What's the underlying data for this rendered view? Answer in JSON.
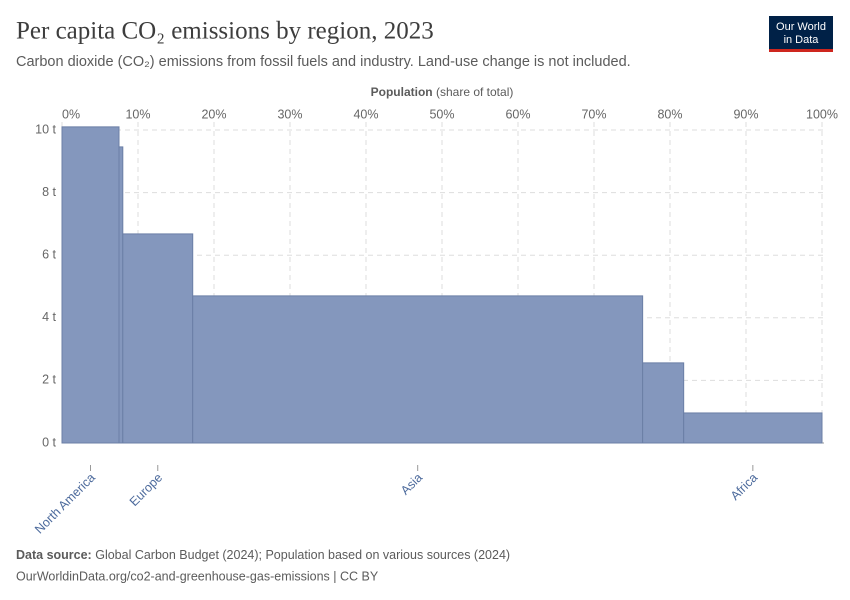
{
  "chart_data": {
    "type": "variable-width-bar",
    "title": "Per capita CO₂ emissions by region, 2023",
    "subtitle": "Carbon dioxide (CO₂) emissions from fossil fuels and industry. Land-use change is not included.",
    "xlabel": "Population",
    "xlabel_note": "(share of total)",
    "logo": [
      "Our World",
      "in Data"
    ],
    "source_label": "Data source:",
    "source": "Global Carbon Budget (2024); Population based on various sources (2024)",
    "url": "OurWorldinData.org/co2-and-greenhouse-gas-emissions | CC BY",
    "categories": [
      "North America",
      null,
      "Europe",
      "Asia",
      null,
      "Africa"
    ],
    "values": [
      10.1,
      9.46,
      6.68,
      4.7,
      2.56,
      0.96
    ],
    "widths": [
      7.5,
      0.5,
      9.2,
      59.2,
      5.4,
      18.2
    ],
    "color": "#8497bd",
    "xlim": [
      0,
      100
    ],
    "xticks": [
      {
        "value": 0,
        "label": "0%"
      },
      {
        "value": 10,
        "label": "10%"
      },
      {
        "value": 20,
        "label": "20%"
      },
      {
        "value": 30,
        "label": "30%"
      },
      {
        "value": 40,
        "label": "40%"
      },
      {
        "value": 50,
        "label": "50%"
      },
      {
        "value": 60,
        "label": "60%"
      },
      {
        "value": 70,
        "label": "70%"
      },
      {
        "value": 80,
        "label": "80%"
      },
      {
        "value": 90,
        "label": "90%"
      },
      {
        "value": 100,
        "label": "100%"
      }
    ],
    "ylim": [
      0,
      10
    ],
    "yticks": [
      {
        "value": 0,
        "label": "0 t"
      },
      {
        "value": 2,
        "label": "2 t"
      },
      {
        "value": 4,
        "label": "4 t"
      },
      {
        "value": 6,
        "label": "6 t"
      },
      {
        "value": 8,
        "label": "8 t"
      },
      {
        "value": 10,
        "label": "10 t"
      }
    ],
    "grid": true
  }
}
